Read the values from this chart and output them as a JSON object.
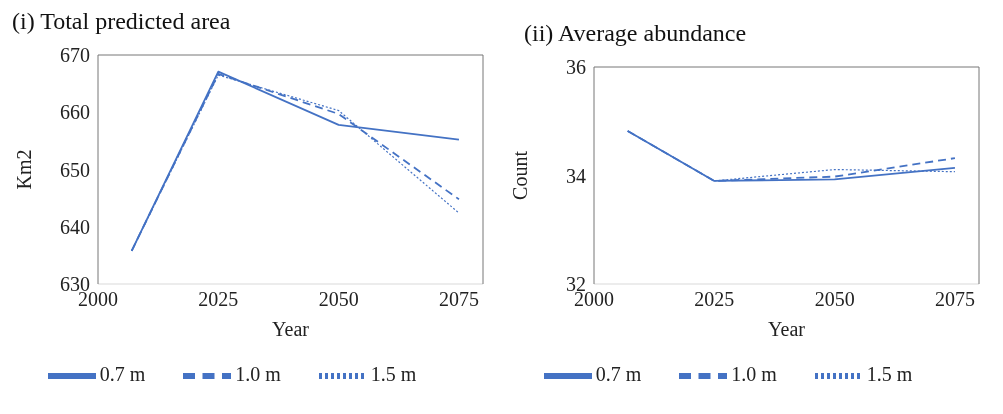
{
  "chart_data": [
    {
      "type": "line",
      "title": "(i) Total predicted area",
      "xlabel": "Year",
      "ylabel": "Km2",
      "x": [
        2007,
        2025,
        2050,
        2075
      ],
      "xlim": [
        2000,
        2080
      ],
      "xticks": [
        2000,
        2025,
        2050,
        2075
      ],
      "ylim": [
        630,
        670
      ],
      "yticks": [
        630,
        640,
        650,
        660,
        670
      ],
      "grid": false,
      "legend": "bottom",
      "marker": "none",
      "series": [
        {
          "name": "0.7 m",
          "color": "#4472c4",
          "line_style": "solid",
          "values": [
            635.8,
            667.1,
            657.8,
            655.2
          ]
        },
        {
          "name": "1.0 m",
          "color": "#4472c4",
          "line_style": "dashed",
          "values": [
            635.8,
            666.7,
            659.7,
            644.8
          ]
        },
        {
          "name": "1.5 m",
          "color": "#4472c4",
          "line_style": "dotted",
          "values": [
            635.8,
            666.5,
            660.3,
            642.4
          ]
        }
      ]
    },
    {
      "type": "line",
      "title": "(ii) Average  abundance",
      "xlabel": "Year",
      "ylabel": "Count",
      "x": [
        2007,
        2025,
        2050,
        2075
      ],
      "xlim": [
        2000,
        2080
      ],
      "xticks": [
        2000,
        2025,
        2050,
        2075
      ],
      "ylim": [
        32,
        36
      ],
      "yticks": [
        32,
        34,
        36
      ],
      "grid": false,
      "legend": "bottom",
      "marker": "none",
      "series": [
        {
          "name": "0.7 m",
          "color": "#4472c4",
          "line_style": "solid",
          "values": [
            34.82,
            33.9,
            33.93,
            34.14
          ]
        },
        {
          "name": "1.0 m",
          "color": "#4472c4",
          "line_style": "dashed",
          "values": [
            34.82,
            33.9,
            33.98,
            34.32
          ]
        },
        {
          "name": "1.5 m",
          "color": "#4472c4",
          "line_style": "dotted",
          "values": [
            34.82,
            33.9,
            34.11,
            34.07
          ]
        }
      ]
    }
  ]
}
